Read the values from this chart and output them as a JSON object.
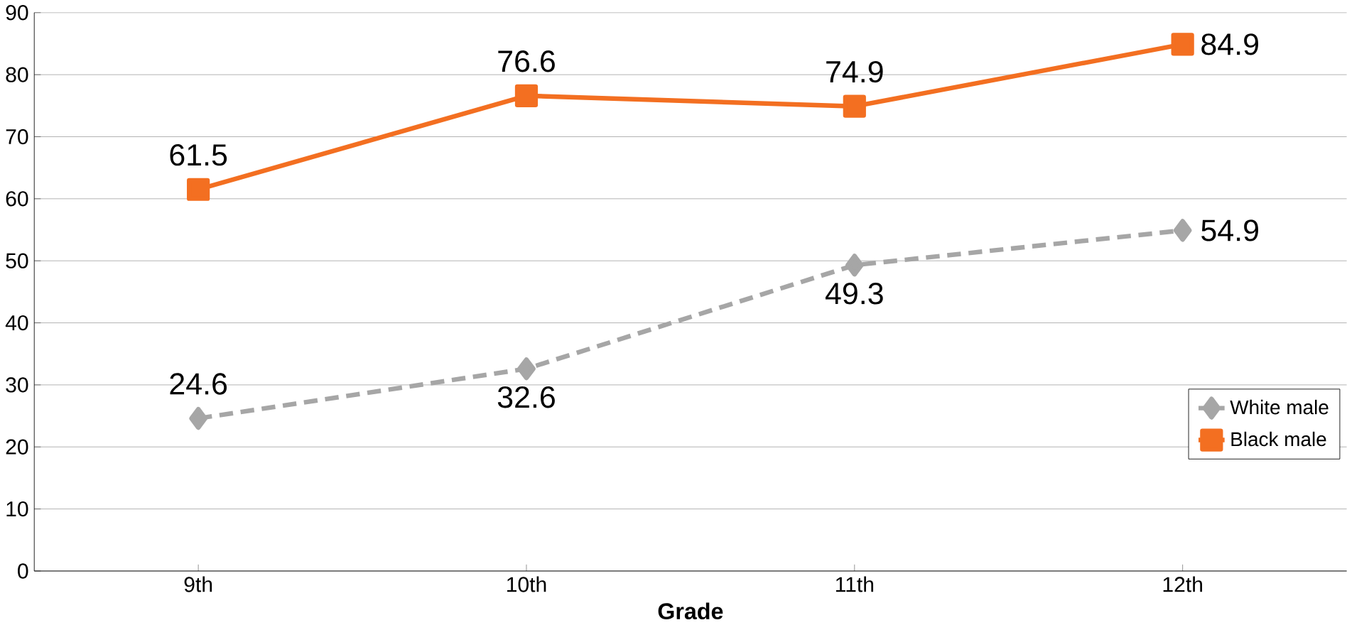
{
  "chart_data": {
    "type": "line",
    "xlabel": "Grade",
    "categories": [
      "9th",
      "10th",
      "11th",
      "12th"
    ],
    "series": [
      {
        "name": "White male",
        "color": "#a6a6a6",
        "values": [
          24.6,
          32.6,
          49.3,
          54.9
        ],
        "marker": "diamond",
        "line_style": "dashed"
      },
      {
        "name": "Black male",
        "color": "#f36f21",
        "values": [
          61.5,
          76.6,
          74.9,
          84.9
        ],
        "marker": "square",
        "line_style": "solid"
      }
    ],
    "ylim": [
      0,
      90
    ],
    "yticks": [
      0,
      10,
      20,
      30,
      40,
      50,
      60,
      70,
      80,
      90
    ],
    "grid": "y",
    "legend": "bottom right",
    "data_labels": true
  }
}
